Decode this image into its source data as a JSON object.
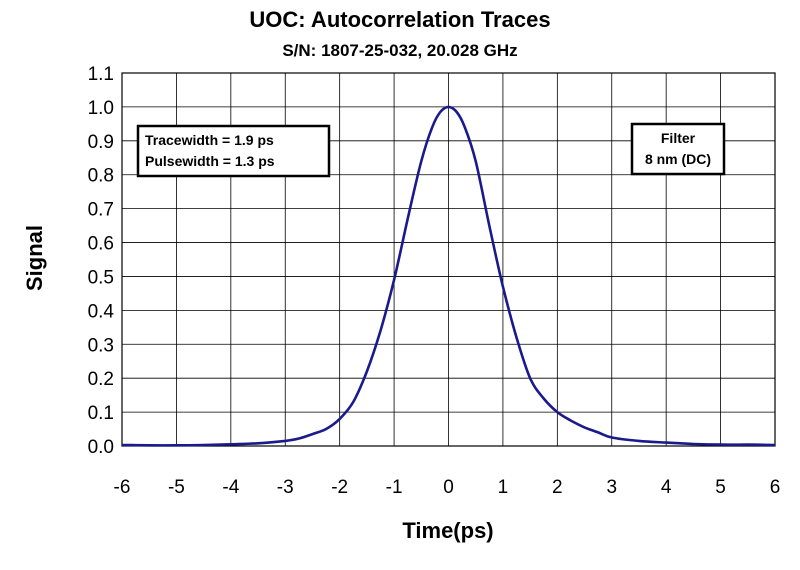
{
  "chart_data": {
    "type": "line",
    "title": "UOC: Autocorrelation Traces",
    "subtitle": "S/N: 1807-25-032,  20.028 GHz",
    "xlabel": "Time(ps)",
    "ylabel": "Signal",
    "xlim": [
      -6,
      6
    ],
    "ylim": [
      0.0,
      1.1
    ],
    "xticks": [
      "-6",
      "-5",
      "-4",
      "-3",
      "-2",
      "-1",
      "0",
      "1",
      "2",
      "3",
      "4",
      "5",
      "6"
    ],
    "yticks": [
      "0.0",
      "0.1",
      "0.2",
      "0.3",
      "0.4",
      "0.5",
      "0.6",
      "0.7",
      "0.8",
      "0.9",
      "1.0",
      "1.1"
    ],
    "grid": true,
    "line_color": "#1a1a8c",
    "annotations": {
      "left_box": [
        "Tracewidth = 1.9 ps",
        "Pulsewidth = 1.3 ps"
      ],
      "right_box": [
        "Filter",
        "8 nm (DC)"
      ]
    },
    "series": [
      {
        "x": [
          -6,
          -5.5,
          -5,
          -4.5,
          -4,
          -3.5,
          -3,
          -2.75,
          -2.5,
          -2.25,
          -2,
          -1.75,
          -1.5,
          -1.25,
          -1,
          -0.75,
          -0.5,
          -0.3,
          -0.15,
          0,
          0.15,
          0.3,
          0.5,
          0.75,
          1,
          1.25,
          1.5,
          1.75,
          2,
          2.25,
          2.5,
          2.75,
          3,
          3.5,
          4,
          4.5,
          5,
          5.5,
          6
        ],
        "y": [
          0.003,
          0.002,
          0.002,
          0.003,
          0.005,
          0.008,
          0.015,
          0.022,
          0.035,
          0.05,
          0.08,
          0.13,
          0.22,
          0.34,
          0.49,
          0.67,
          0.84,
          0.94,
          0.985,
          1.0,
          0.985,
          0.94,
          0.84,
          0.65,
          0.47,
          0.32,
          0.2,
          0.14,
          0.1,
          0.075,
          0.055,
          0.04,
          0.025,
          0.015,
          0.01,
          0.006,
          0.004,
          0.004,
          0.003
        ]
      }
    ]
  }
}
